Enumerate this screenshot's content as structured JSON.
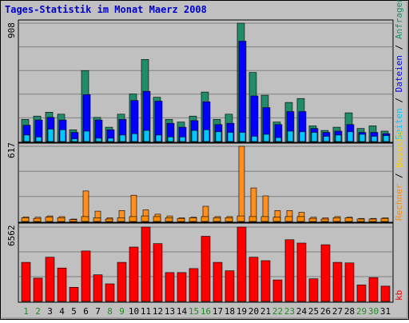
{
  "title": "Tages-Statistik im Monat Maerz 2008",
  "chart_data": [
    {
      "type": "bar",
      "panel": "hits-files-pages",
      "axis_max_label": "908",
      "ylim": [
        0,
        908
      ],
      "categories": [
        "1",
        "2",
        "3",
        "4",
        "5",
        "6",
        "7",
        "8",
        "9",
        "10",
        "11",
        "12",
        "13",
        "14",
        "15",
        "16",
        "17",
        "18",
        "19",
        "20",
        "21",
        "22",
        "23",
        "24",
        "25",
        "26",
        "27",
        "28",
        "29",
        "30",
        "31"
      ],
      "weekend_days": [
        "1",
        "2",
        "8",
        "9",
        "15",
        "16",
        "22",
        "23",
        "29",
        "30"
      ],
      "series": [
        {
          "name": "Anfragen",
          "color": "#228b69",
          "values": [
            170,
            195,
            225,
            210,
            90,
            545,
            185,
            110,
            210,
            365,
            630,
            340,
            170,
            150,
            195,
            380,
            170,
            210,
            908,
            530,
            355,
            150,
            300,
            330,
            120,
            85,
            110,
            220,
            100,
            120,
            80
          ]
        },
        {
          "name": "Dateien",
          "color": "#0000ff",
          "values": [
            125,
            165,
            185,
            165,
            70,
            360,
            165,
            90,
            170,
            315,
            385,
            310,
            140,
            110,
            160,
            305,
            130,
            140,
            770,
            350,
            260,
            130,
            230,
            230,
            100,
            70,
            80,
            130,
            70,
            70,
            60
          ]
        },
        {
          "name": "Seiten",
          "color": "#00c8ff",
          "values": [
            50,
            35,
            95,
            90,
            20,
            80,
            25,
            25,
            50,
            60,
            85,
            50,
            35,
            35,
            85,
            90,
            75,
            70,
            70,
            40,
            55,
            30,
            80,
            75,
            70,
            40,
            50,
            75,
            55,
            40,
            45
          ]
        }
      ],
      "legend": [
        "Anfragen",
        "/",
        "Dateien",
        "/",
        "Seiten"
      ]
    },
    {
      "type": "bar",
      "panel": "visits-hosts",
      "axis_max_label": "617",
      "ylim": [
        0,
        617
      ],
      "categories": [
        "1",
        "2",
        "3",
        "4",
        "5",
        "6",
        "7",
        "8",
        "9",
        "10",
        "11",
        "12",
        "13",
        "14",
        "15",
        "16",
        "17",
        "18",
        "19",
        "20",
        "21",
        "22",
        "23",
        "24",
        "25",
        "26",
        "27",
        "28",
        "29",
        "30",
        "31"
      ],
      "series": [
        {
          "name": "Besuche",
          "color": "#ff9020",
          "values": [
            38,
            35,
            45,
            40,
            20,
            250,
            85,
            30,
            90,
            215,
            95,
            60,
            45,
            30,
            35,
            125,
            40,
            40,
            617,
            275,
            210,
            90,
            90,
            75,
            35,
            30,
            40,
            35,
            25,
            25,
            30
          ]
        },
        {
          "name": "Rechner",
          "color": "#ff8c00",
          "values": [
            30,
            25,
            35,
            30,
            15,
            40,
            30,
            20,
            30,
            40,
            45,
            40,
            30,
            25,
            30,
            40,
            30,
            30,
            45,
            40,
            40,
            35,
            40,
            40,
            25,
            20,
            30,
            30,
            20,
            20,
            25
          ]
        }
      ],
      "legend": [
        "Rechner",
        "/",
        "Besuche"
      ]
    },
    {
      "type": "bar",
      "panel": "kbytes",
      "axis_max_label": "6562",
      "ylim": [
        0,
        6562
      ],
      "categories": [
        "1",
        "2",
        "3",
        "4",
        "5",
        "6",
        "7",
        "8",
        "9",
        "10",
        "11",
        "12",
        "13",
        "14",
        "15",
        "16",
        "17",
        "18",
        "19",
        "20",
        "21",
        "22",
        "23",
        "24",
        "25",
        "26",
        "27",
        "28",
        "29",
        "30",
        "31"
      ],
      "series": [
        {
          "name": "kb",
          "color": "#ff0000",
          "values": [
            3450,
            2050,
            3900,
            2950,
            1250,
            4450,
            2350,
            1550,
            3450,
            4800,
            6562,
            5100,
            2550,
            2550,
            2900,
            5750,
            3450,
            2700,
            6562,
            3900,
            3600,
            1900,
            5450,
            5150,
            2000,
            5000,
            3450,
            3400,
            1450,
            2100,
            1350
          ]
        }
      ],
      "legend": [
        "kb"
      ]
    }
  ]
}
